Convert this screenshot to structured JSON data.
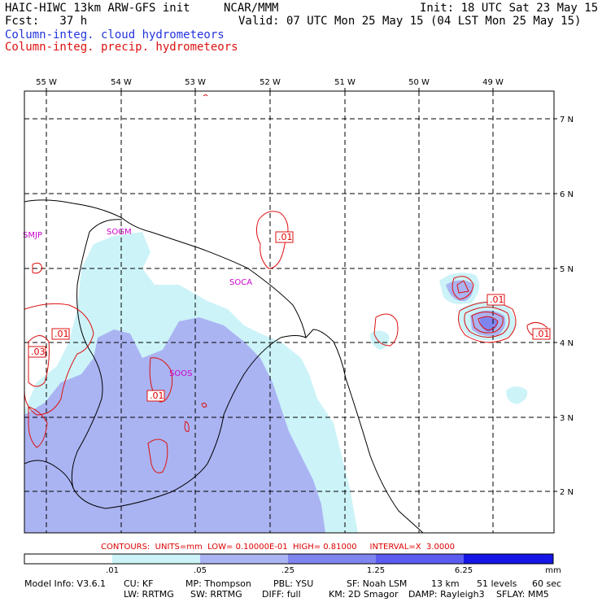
{
  "header": {
    "model": "HAIC-HIWC 13km ARW-GFS init",
    "org": "NCAR/MMM",
    "fcst": "Fcst:   37 h",
    "init": "Init: 18 UTC Sat 23 May 15",
    "valid": "Valid: 07 UTC Mon 25 May 15 (04 LST Mon 25 May 15)",
    "field1": "Column-integ. cloud hydrometeors",
    "field2": "Column-integ. precip. hydrometeors"
  },
  "map": {
    "lon_labels": [
      "55 W",
      "54 W",
      "53 W",
      "52 W",
      "51 W",
      "50 W",
      "49 W"
    ],
    "lat_labels": [
      "7 N",
      "6 N",
      "5 N",
      "4 N",
      "3 N",
      "2 N"
    ],
    "stations": [
      "SMJP",
      "SOGM",
      "SOCA",
      "SOOS"
    ],
    "contour_labels": [
      ".01",
      ".01",
      ".03",
      ".01",
      ".01",
      ".01"
    ]
  },
  "contour_info": "CONTOURS:  UNITS=mm  LOW= 0.10000E-01  HIGH= 0.81000     INTERVAL=X  3.0000",
  "colorbar": {
    "ticks": [
      ".01",
      ".05",
      ".25",
      "1.25",
      "6.25"
    ],
    "unit": "mm",
    "colors": [
      "#ffffff",
      "#ccf3f8",
      "#aab4f2",
      "#7f85ee",
      "#5b5bf0",
      "#1515e6"
    ]
  },
  "footer": {
    "line1": [
      "Model Info: V3.6.1",
      "CU: KF",
      "MP: Thompson",
      "PBL: YSU",
      "SF: Noah LSM",
      "13 km",
      "51 levels",
      "60 sec"
    ],
    "line2": [
      "LW: RRTMG",
      "SW: RRTMG",
      "DIFF: full",
      "KM: 2D Smagor",
      "DAMP: Rayleigh3",
      "SFLAY: MM5"
    ]
  }
}
